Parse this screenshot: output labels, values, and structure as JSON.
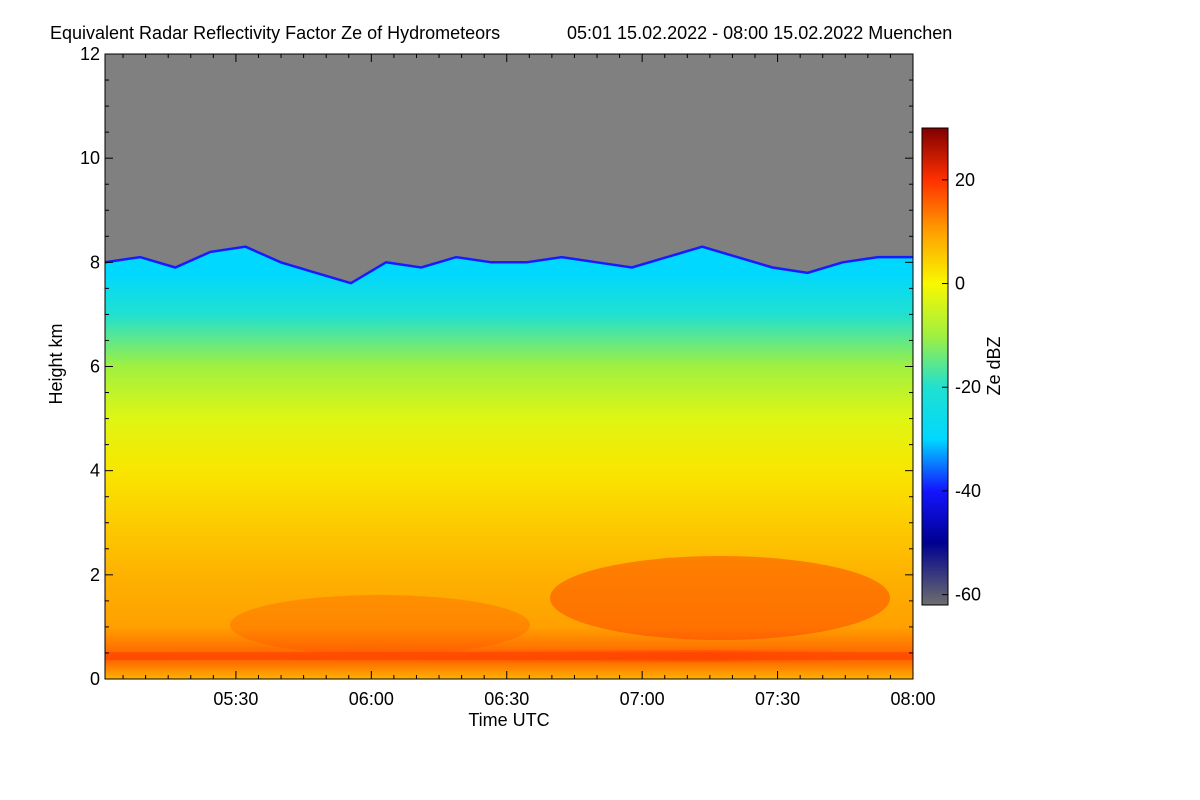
{
  "chart_data": {
    "type": "heatmap",
    "title": "Equivalent Radar Reflectivity Factor Ze of Hydrometeors",
    "subtitle": "05:01 15.02.2022 - 08:00 15.02.2022 Muenchen",
    "xlabel": "Time UTC",
    "ylabel": "Height km",
    "colorbar_label": "Ze dBZ",
    "x_ticks": [
      "05:30",
      "06:00",
      "06:30",
      "07:00",
      "07:30",
      "08:00"
    ],
    "y_ticks": [
      "0",
      "2",
      "4",
      "6",
      "8",
      "10",
      "12"
    ],
    "colorbar_ticks": [
      "20",
      "0",
      "-20",
      "-40",
      "-60"
    ],
    "xlim": [
      "05:01",
      "08:00"
    ],
    "ylim": [
      0,
      12
    ],
    "zlim": [
      -62,
      30
    ],
    "no_signal_color": "#808080",
    "cloud_top_km": [
      8.0,
      8.1,
      7.9,
      8.2,
      8.3,
      8.0,
      7.8,
      7.6,
      8.0,
      7.9,
      8.1,
      8.0,
      8.0,
      8.1,
      8.0,
      7.9,
      8.1,
      8.3,
      8.1,
      7.9,
      7.8,
      8.0,
      8.1,
      8.1
    ],
    "reflectivity_profile": [
      {
        "height_km": 0.0,
        "ze_dbz": 8
      },
      {
        "height_km": 0.4,
        "ze_dbz": 16
      },
      {
        "height_km": 1.0,
        "ze_dbz": 10
      },
      {
        "height_km": 2.0,
        "ze_dbz": 8
      },
      {
        "height_km": 3.0,
        "ze_dbz": 5
      },
      {
        "height_km": 4.0,
        "ze_dbz": 2
      },
      {
        "height_km": 5.0,
        "ze_dbz": -3
      },
      {
        "height_km": 6.0,
        "ze_dbz": -10
      },
      {
        "height_km": 7.0,
        "ze_dbz": -20
      },
      {
        "height_km": 7.8,
        "ze_dbz": -30
      }
    ],
    "colorscale": [
      {
        "dbz": -62,
        "color": "#6e6e6e"
      },
      {
        "dbz": -50,
        "color": "#000090"
      },
      {
        "dbz": -40,
        "color": "#1414ff"
      },
      {
        "dbz": -30,
        "color": "#00d8ff"
      },
      {
        "dbz": -20,
        "color": "#20e0d0"
      },
      {
        "dbz": -10,
        "color": "#a0f040"
      },
      {
        "dbz": 0,
        "color": "#f8f800"
      },
      {
        "dbz": 10,
        "color": "#ffa000"
      },
      {
        "dbz": 20,
        "color": "#ff3000"
      },
      {
        "dbz": 30,
        "color": "#800000"
      }
    ]
  }
}
